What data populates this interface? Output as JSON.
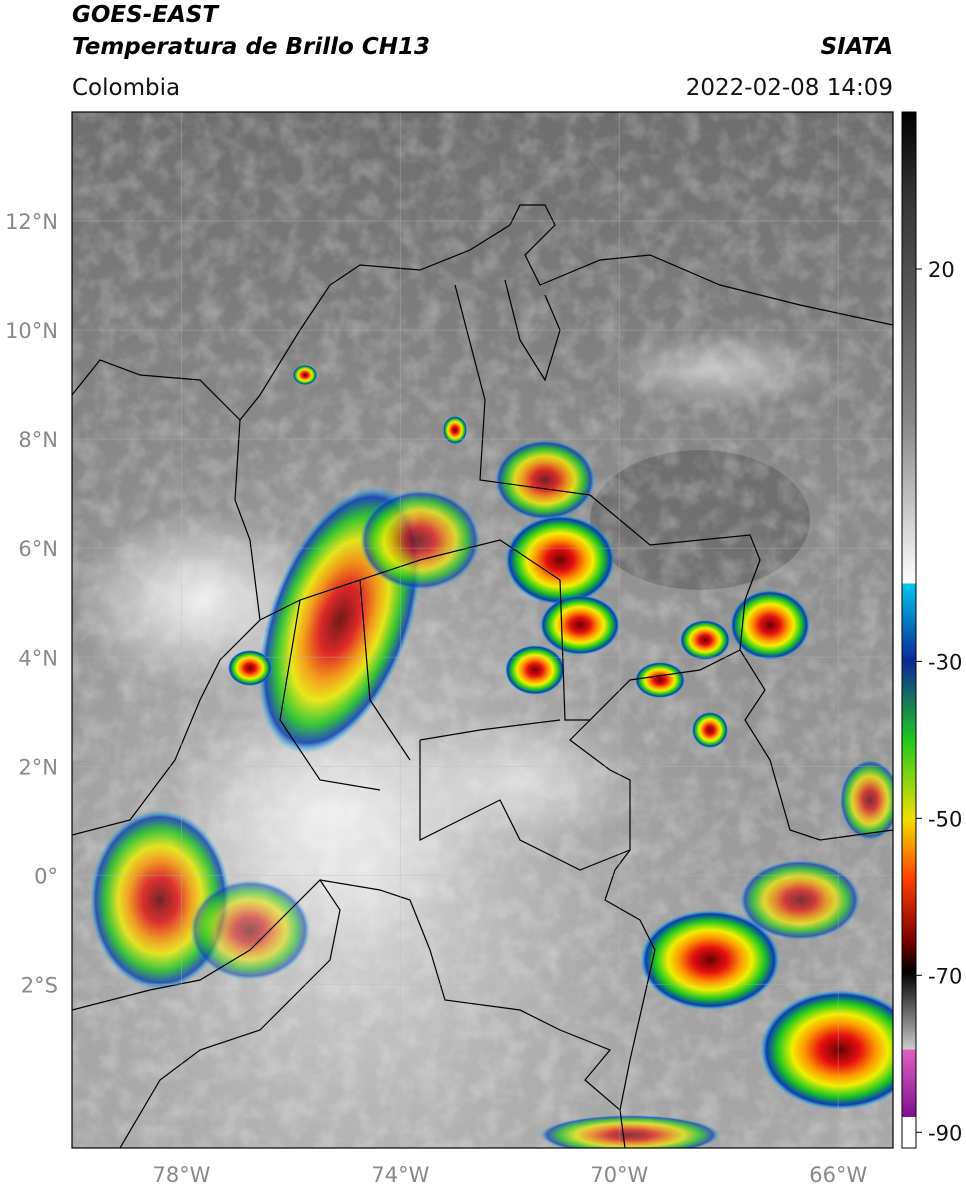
{
  "header": {
    "title": "GOES-EAST",
    "subtitle": "Temperatura de Brillo CH13",
    "source": "SIATA",
    "region": "Colombia",
    "datetime": "2022-02-08 14:09"
  },
  "map": {
    "lonlim": [
      -80,
      -65
    ],
    "latlim": [
      -5,
      14
    ],
    "lon_ticks": [
      {
        "value": -78,
        "label": "78°W"
      },
      {
        "value": -74,
        "label": "74°W"
      },
      {
        "value": -70,
        "label": "70°W"
      },
      {
        "value": -66,
        "label": "66°W"
      }
    ],
    "lat_ticks": [
      {
        "value": 12,
        "label": "12°N"
      },
      {
        "value": 10,
        "label": "10°N"
      },
      {
        "value": 8,
        "label": "8°N"
      },
      {
        "value": 6,
        "label": "6°N"
      },
      {
        "value": 4,
        "label": "4°N"
      },
      {
        "value": 2,
        "label": "2°N"
      },
      {
        "value": 0,
        "label": "0°"
      },
      {
        "value": -2,
        "label": "2°S"
      }
    ]
  },
  "colorbar": {
    "lim": [
      -92,
      40
    ],
    "ticks": [
      20,
      -30,
      -50,
      -70,
      -90
    ]
  }
}
